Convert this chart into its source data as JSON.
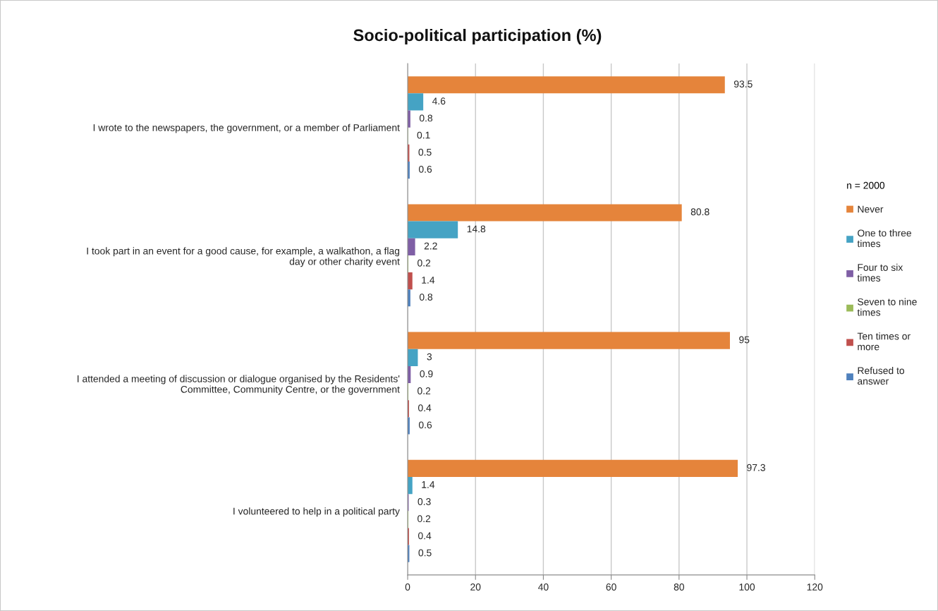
{
  "chart_data": {
    "type": "bar",
    "orientation": "horizontal",
    "title": "Socio-political participation (%)",
    "categories": [
      "I wrote to the newspapers, the government, or a member of Parliament",
      "I took part in an event for a good cause, for example, a walkathon, a flag\nday or other charity event",
      "I attended a meeting of discussion or dialogue organised by the Residents'\nCommittee, Community Centre, or the government",
      "I volunteered to help in a political party"
    ],
    "series": [
      {
        "name": "Never",
        "color": "#e5843b",
        "values": [
          93.5,
          80.8,
          95,
          97.3
        ]
      },
      {
        "name": "One to three\ntimes",
        "color": "#45a3c4",
        "values": [
          4.6,
          14.8,
          3,
          1.4
        ]
      },
      {
        "name": "Four to six\ntimes",
        "color": "#7f5fa5",
        "values": [
          0.8,
          2.2,
          0.9,
          0.3
        ]
      },
      {
        "name": "Seven to nine\ntimes",
        "color": "#9bbb59",
        "values": [
          0.1,
          0.2,
          0.2,
          0.2
        ]
      },
      {
        "name": "Ten times or\nmore",
        "color": "#c0504d",
        "values": [
          0.5,
          1.4,
          0.4,
          0.4
        ]
      },
      {
        "name": "Refused to\nanswer",
        "color": "#4f81bd",
        "values": [
          0.6,
          0.8,
          0.6,
          0.5
        ]
      }
    ],
    "xlim": [
      0,
      120
    ],
    "xticks": [
      0,
      20,
      40,
      60,
      80,
      100,
      120
    ],
    "grid": "x",
    "legend": "right",
    "legend_title": "n = 2000",
    "data_labels": true
  }
}
